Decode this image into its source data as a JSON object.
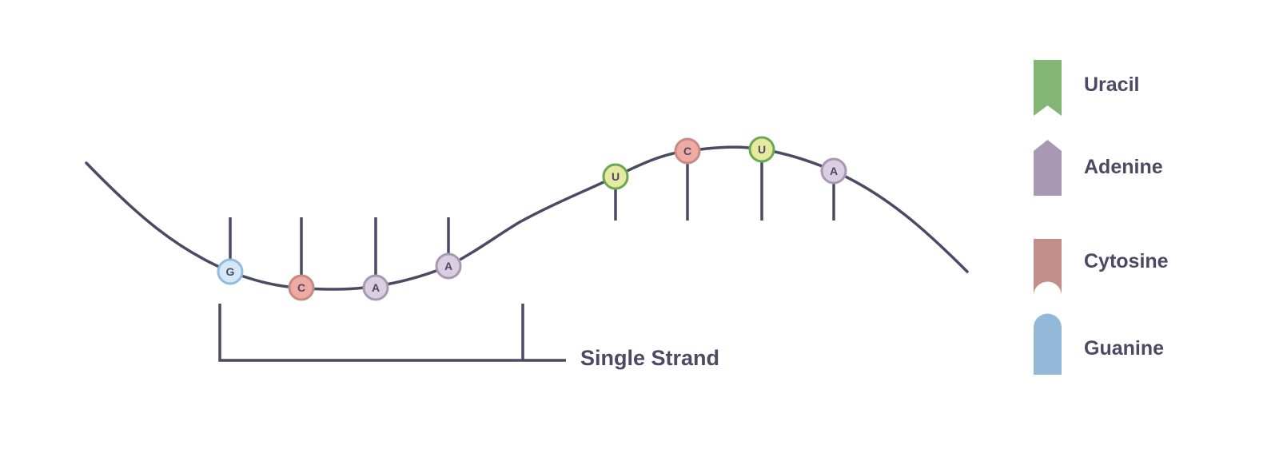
{
  "strand_label": "Single Strand",
  "colors": {
    "line": "#4a4a64",
    "uracil_fill": "#e6eaa0",
    "uracil_stroke": "#6aa84f",
    "uracil_legend": "#83b674",
    "adenine_fill": "#d9cfe0",
    "adenine_stroke": "#a898b4",
    "adenine_legend": "#a898b4",
    "cytosine_fill": "#f0aaa4",
    "cytosine_stroke": "#c88a84",
    "cytosine_legend": "#c48e88",
    "guanine_fill": "#d6e8f6",
    "guanine_stroke": "#94bbdc",
    "guanine_legend": "#94b8d8"
  },
  "nucleotides": [
    {
      "base": "guanine",
      "letter": "G"
    },
    {
      "base": "cytosine",
      "letter": "C"
    },
    {
      "base": "adenine",
      "letter": "A"
    },
    {
      "base": "adenine",
      "letter": "A"
    },
    {
      "base": "uracil",
      "letter": "U"
    },
    {
      "base": "cytosine",
      "letter": "C"
    },
    {
      "base": "uracil",
      "letter": "U"
    },
    {
      "base": "adenine",
      "letter": "A"
    }
  ],
  "legend": [
    {
      "base": "uracil",
      "label": "Uracil",
      "shape": "ribbon-notch"
    },
    {
      "base": "adenine",
      "label": "Adenine",
      "shape": "pentagon-point"
    },
    {
      "base": "cytosine",
      "label": "Cytosine",
      "shape": "bar-notch-round"
    },
    {
      "base": "guanine",
      "label": "Guanine",
      "shape": "bar-round-top"
    }
  ]
}
